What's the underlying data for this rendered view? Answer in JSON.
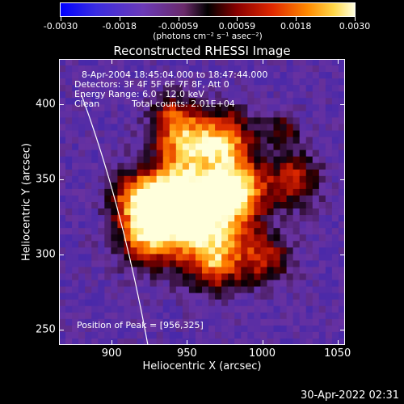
{
  "colorbar": {
    "tick_labels": [
      "-0.0030",
      "-0.0018",
      "-0.00059",
      "0.00059",
      "0.0018",
      "0.0030"
    ],
    "unit_label": "(photons cm⁻² s⁻¹ asec⁻²)"
  },
  "title": "Reconstructed RHESSI Image",
  "info": {
    "time_range": "8-Apr-2004 18:45:04.000 to 18:47:44.000",
    "detectors": "Detectors: 3F 4F 5F 6F 7F 8F, Att 0",
    "energy_range": "Energy Range: 6.0 - 12.0 keV",
    "clean": "Clean",
    "total_counts": "Total counts: 2.01E+04",
    "peak": "Position of Peak = [956,325]"
  },
  "axes": {
    "xlabel": "Heliocentric X (arcsec)",
    "ylabel": "Heliocentric Y (arcsec)",
    "x_ticks": [
      "900",
      "950",
      "1000",
      "1050"
    ],
    "y_ticks": [
      "400",
      "350",
      "300",
      "250"
    ],
    "x_range": [
      865,
      1055
    ],
    "y_range": [
      240,
      430
    ]
  },
  "timestamp": "30-Apr-2022 02:31",
  "colors": {
    "background": "#000000",
    "text": "#ffffff",
    "limb": "#ffffff"
  }
}
